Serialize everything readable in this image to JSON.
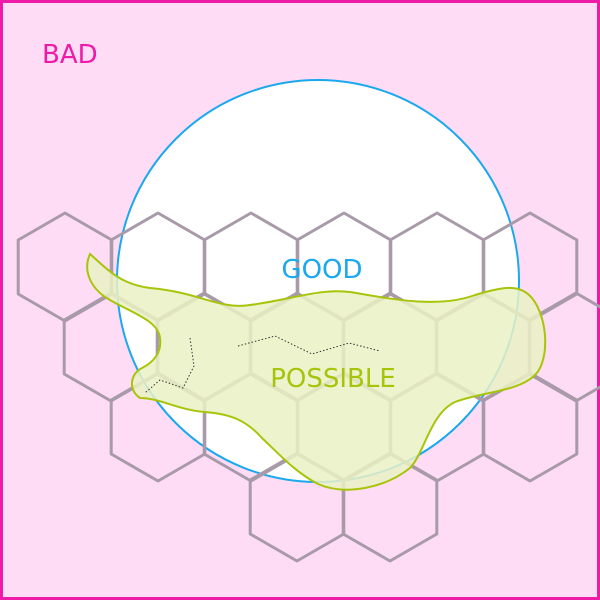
{
  "labels": {
    "bad": "BAD",
    "good": "GOOD",
    "possible": "POSSIBLE"
  },
  "colors": {
    "bad_fill": "#ffdcf5",
    "bad_stroke": "#ee1aa8",
    "bad_text": "#ee1aa8",
    "good_fill": "#ffffff",
    "good_stroke": "#1aa8ee",
    "good_text": "#1aa8ee",
    "possible_fill": "#eaf2c4",
    "possible_stroke": "#a8c40a",
    "possible_text": "#a8c40a",
    "hex_stroke": "#a89aa8",
    "blob_tint": "#e8c8b8"
  }
}
